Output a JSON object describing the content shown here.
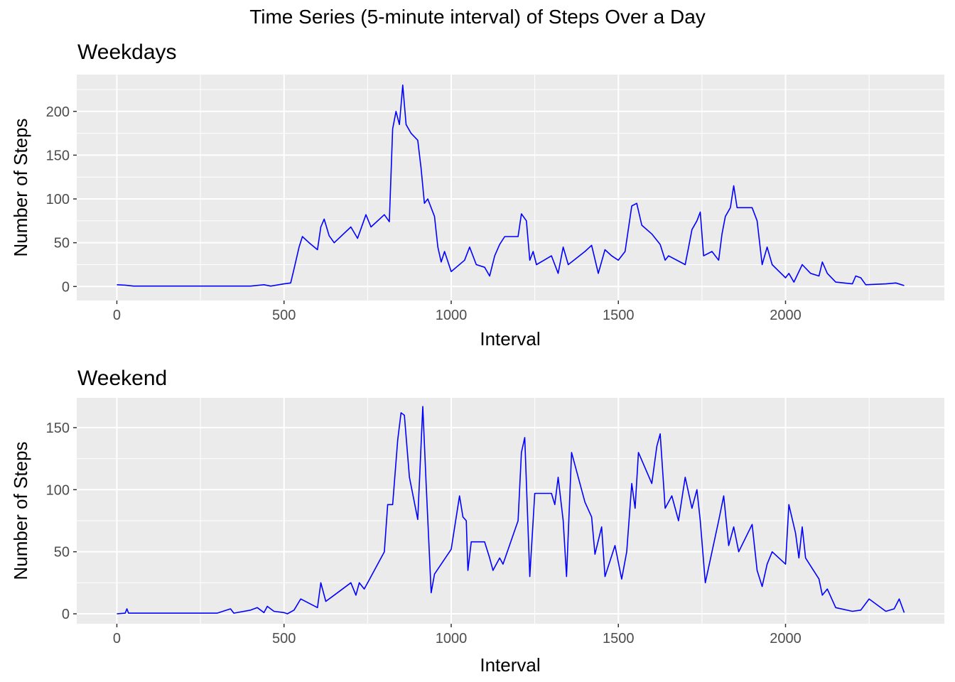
{
  "figure": {
    "title": "Time Series (5-minute interval) of Steps Over a Day"
  },
  "chart_data": [
    {
      "type": "line",
      "title": "Weekdays",
      "xlabel": "Interval",
      "ylabel": "Number of Steps",
      "xlim": [
        -120,
        2475
      ],
      "ylim": [
        -16,
        242
      ],
      "xticks": [
        0,
        500,
        1000,
        1500,
        2000
      ],
      "yticks": [
        0,
        50,
        100,
        150,
        200
      ],
      "grid": true,
      "line_color": "#0000ff",
      "series": [
        {
          "points": [
            [
              0,
              2
            ],
            [
              25,
              1.5
            ],
            [
              50,
              0.5
            ],
            [
              100,
              0.5
            ],
            [
              150,
              0.5
            ],
            [
              200,
              0.5
            ],
            [
              250,
              0.5
            ],
            [
              300,
              0.5
            ],
            [
              350,
              0.5
            ],
            [
              400,
              0.5
            ],
            [
              440,
              2
            ],
            [
              460,
              0.5
            ],
            [
              500,
              3
            ],
            [
              520,
              4
            ],
            [
              530,
              20
            ],
            [
              545,
              45
            ],
            [
              555,
              57
            ],
            [
              575,
              50
            ],
            [
              600,
              42
            ],
            [
              610,
              68
            ],
            [
              620,
              77
            ],
            [
              635,
              58
            ],
            [
              650,
              50
            ],
            [
              700,
              68
            ],
            [
              720,
              55
            ],
            [
              745,
              82
            ],
            [
              760,
              68
            ],
            [
              800,
              82
            ],
            [
              815,
              74
            ],
            [
              825,
              180
            ],
            [
              835,
              200
            ],
            [
              845,
              185
            ],
            [
              855,
              230
            ],
            [
              865,
              185
            ],
            [
              880,
              175
            ],
            [
              900,
              167
            ],
            [
              910,
              135
            ],
            [
              920,
              95
            ],
            [
              930,
              100
            ],
            [
              950,
              80
            ],
            [
              960,
              45
            ],
            [
              970,
              28
            ],
            [
              980,
              40
            ],
            [
              1000,
              17
            ],
            [
              1040,
              30
            ],
            [
              1055,
              45
            ],
            [
              1075,
              25
            ],
            [
              1100,
              22
            ],
            [
              1115,
              12
            ],
            [
              1130,
              35
            ],
            [
              1145,
              48
            ],
            [
              1160,
              57
            ],
            [
              1200,
              57
            ],
            [
              1210,
              83
            ],
            [
              1225,
              75
            ],
            [
              1235,
              30
            ],
            [
              1245,
              40
            ],
            [
              1255,
              25
            ],
            [
              1300,
              35
            ],
            [
              1320,
              15
            ],
            [
              1335,
              45
            ],
            [
              1350,
              25
            ],
            [
              1400,
              40
            ],
            [
              1420,
              47
            ],
            [
              1440,
              15
            ],
            [
              1460,
              42
            ],
            [
              1480,
              35
            ],
            [
              1500,
              30
            ],
            [
              1520,
              40
            ],
            [
              1540,
              92
            ],
            [
              1555,
              95
            ],
            [
              1570,
              70
            ],
            [
              1600,
              60
            ],
            [
              1625,
              48
            ],
            [
              1640,
              30
            ],
            [
              1650,
              35
            ],
            [
              1700,
              25
            ],
            [
              1710,
              45
            ],
            [
              1720,
              65
            ],
            [
              1735,
              75
            ],
            [
              1745,
              85
            ],
            [
              1755,
              35
            ],
            [
              1780,
              40
            ],
            [
              1800,
              30
            ],
            [
              1810,
              60
            ],
            [
              1820,
              80
            ],
            [
              1835,
              90
            ],
            [
              1845,
              115
            ],
            [
              1855,
              90
            ],
            [
              1900,
              90
            ],
            [
              1915,
              75
            ],
            [
              1930,
              25
            ],
            [
              1945,
              45
            ],
            [
              1960,
              25
            ],
            [
              2000,
              10
            ],
            [
              2010,
              15
            ],
            [
              2025,
              5
            ],
            [
              2050,
              25
            ],
            [
              2075,
              15
            ],
            [
              2100,
              12
            ],
            [
              2110,
              28
            ],
            [
              2125,
              15
            ],
            [
              2150,
              5
            ],
            [
              2200,
              3
            ],
            [
              2210,
              12
            ],
            [
              2225,
              10
            ],
            [
              2240,
              2
            ],
            [
              2300,
              3
            ],
            [
              2330,
              4
            ],
            [
              2355,
              1
            ]
          ]
        }
      ]
    },
    {
      "type": "line",
      "title": "Weekend",
      "xlabel": "Interval",
      "ylabel": "Number of Steps",
      "xlim": [
        -120,
        2475
      ],
      "ylim": [
        -8,
        174
      ],
      "xticks": [
        0,
        500,
        1000,
        1500,
        2000
      ],
      "yticks": [
        0,
        50,
        100,
        150
      ],
      "grid": true,
      "line_color": "#0000ff",
      "series": [
        {
          "points": [
            [
              0,
              0
            ],
            [
              25,
              0.5
            ],
            [
              30,
              4
            ],
            [
              35,
              0.5
            ],
            [
              100,
              0.5
            ],
            [
              150,
              0.5
            ],
            [
              200,
              0.5
            ],
            [
              300,
              0.5
            ],
            [
              340,
              4
            ],
            [
              350,
              0.5
            ],
            [
              400,
              3
            ],
            [
              420,
              5
            ],
            [
              440,
              1
            ],
            [
              450,
              6
            ],
            [
              470,
              2
            ],
            [
              500,
              1
            ],
            [
              510,
              0
            ],
            [
              530,
              3
            ],
            [
              550,
              12
            ],
            [
              600,
              5
            ],
            [
              610,
              25
            ],
            [
              625,
              10
            ],
            [
              650,
              15
            ],
            [
              700,
              25
            ],
            [
              715,
              15
            ],
            [
              725,
              25
            ],
            [
              740,
              20
            ],
            [
              760,
              30
            ],
            [
              800,
              50
            ],
            [
              810,
              88
            ],
            [
              825,
              88
            ],
            [
              840,
              140
            ],
            [
              850,
              162
            ],
            [
              860,
              160
            ],
            [
              875,
              110
            ],
            [
              900,
              76
            ],
            [
              915,
              167
            ],
            [
              925,
              105
            ],
            [
              940,
              17
            ],
            [
              950,
              32
            ],
            [
              1000,
              52
            ],
            [
              1025,
              95
            ],
            [
              1035,
              78
            ],
            [
              1045,
              75
            ],
            [
              1050,
              35
            ],
            [
              1060,
              58
            ],
            [
              1100,
              58
            ],
            [
              1115,
              45
            ],
            [
              1125,
              35
            ],
            [
              1145,
              45
            ],
            [
              1155,
              40
            ],
            [
              1200,
              75
            ],
            [
              1210,
              130
            ],
            [
              1220,
              142
            ],
            [
              1235,
              30
            ],
            [
              1250,
              97
            ],
            [
              1300,
              97
            ],
            [
              1310,
              88
            ],
            [
              1320,
              110
            ],
            [
              1335,
              75
            ],
            [
              1345,
              30
            ],
            [
              1360,
              130
            ],
            [
              1400,
              90
            ],
            [
              1420,
              78
            ],
            [
              1430,
              48
            ],
            [
              1450,
              70
            ],
            [
              1460,
              30
            ],
            [
              1490,
              55
            ],
            [
              1510,
              28
            ],
            [
              1525,
              50
            ],
            [
              1540,
              105
            ],
            [
              1550,
              85
            ],
            [
              1560,
              130
            ],
            [
              1600,
              105
            ],
            [
              1615,
              135
            ],
            [
              1625,
              145
            ],
            [
              1640,
              85
            ],
            [
              1660,
              95
            ],
            [
              1680,
              75
            ],
            [
              1700,
              110
            ],
            [
              1720,
              85
            ],
            [
              1735,
              100
            ],
            [
              1745,
              75
            ],
            [
              1760,
              25
            ],
            [
              1800,
              75
            ],
            [
              1815,
              95
            ],
            [
              1830,
              55
            ],
            [
              1845,
              70
            ],
            [
              1860,
              50
            ],
            [
              1900,
              72
            ],
            [
              1915,
              35
            ],
            [
              1930,
              22
            ],
            [
              1945,
              40
            ],
            [
              1960,
              50
            ],
            [
              2000,
              40
            ],
            [
              2010,
              88
            ],
            [
              2030,
              65
            ],
            [
              2040,
              45
            ],
            [
              2050,
              70
            ],
            [
              2060,
              45
            ],
            [
              2100,
              28
            ],
            [
              2110,
              15
            ],
            [
              2125,
              20
            ],
            [
              2150,
              5
            ],
            [
              2200,
              2
            ],
            [
              2225,
              3
            ],
            [
              2250,
              12
            ],
            [
              2300,
              2
            ],
            [
              2325,
              4
            ],
            [
              2340,
              12
            ],
            [
              2355,
              1
            ]
          ]
        }
      ]
    }
  ]
}
